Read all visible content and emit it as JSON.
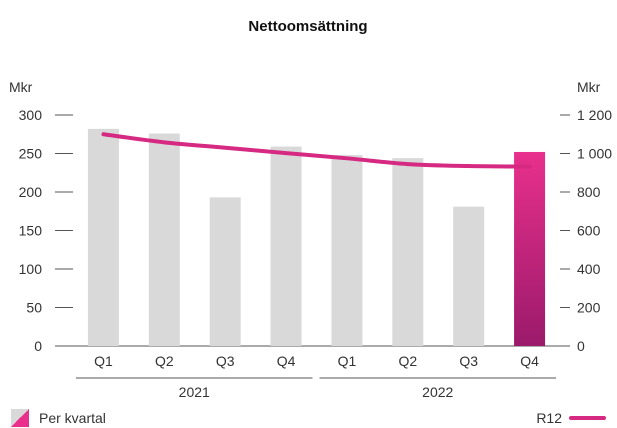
{
  "chart_data": {
    "type": "bar",
    "title": "Nettoomsättning",
    "left_unit": "Mkr",
    "right_unit": "Mkr",
    "categories": [
      "Q1",
      "Q2",
      "Q3",
      "Q4",
      "Q1",
      "Q2",
      "Q3",
      "Q4"
    ],
    "years": [
      {
        "label": "2021",
        "quarters": 4
      },
      {
        "label": "2022",
        "quarters": 4
      }
    ],
    "left_ylim": [
      0,
      300
    ],
    "left_ticks": [
      "0",
      "50",
      "100",
      "150",
      "200",
      "250",
      "300"
    ],
    "right_ylim": [
      0,
      1200
    ],
    "right_ticks": [
      "0",
      "200",
      "400",
      "600",
      "800",
      "1 000",
      "1 200"
    ],
    "series": [
      {
        "name": "Per kvartal",
        "type": "bar",
        "axis": "left",
        "values": [
          282,
          276,
          193,
          259,
          248,
          244,
          181,
          252
        ],
        "highlight_index": 7,
        "color": "#d9d9d9",
        "highlight_gradient": [
          "#e8308c",
          "#9b1a6b"
        ]
      },
      {
        "name": "R12",
        "type": "line",
        "axis": "right",
        "values": [
          1100,
          1058,
          1030,
          1002,
          975,
          945,
          935,
          932
        ],
        "color": "#d62a82"
      }
    ],
    "grid": true,
    "legend": {
      "left": "Per kvartal",
      "right": "R12"
    }
  }
}
